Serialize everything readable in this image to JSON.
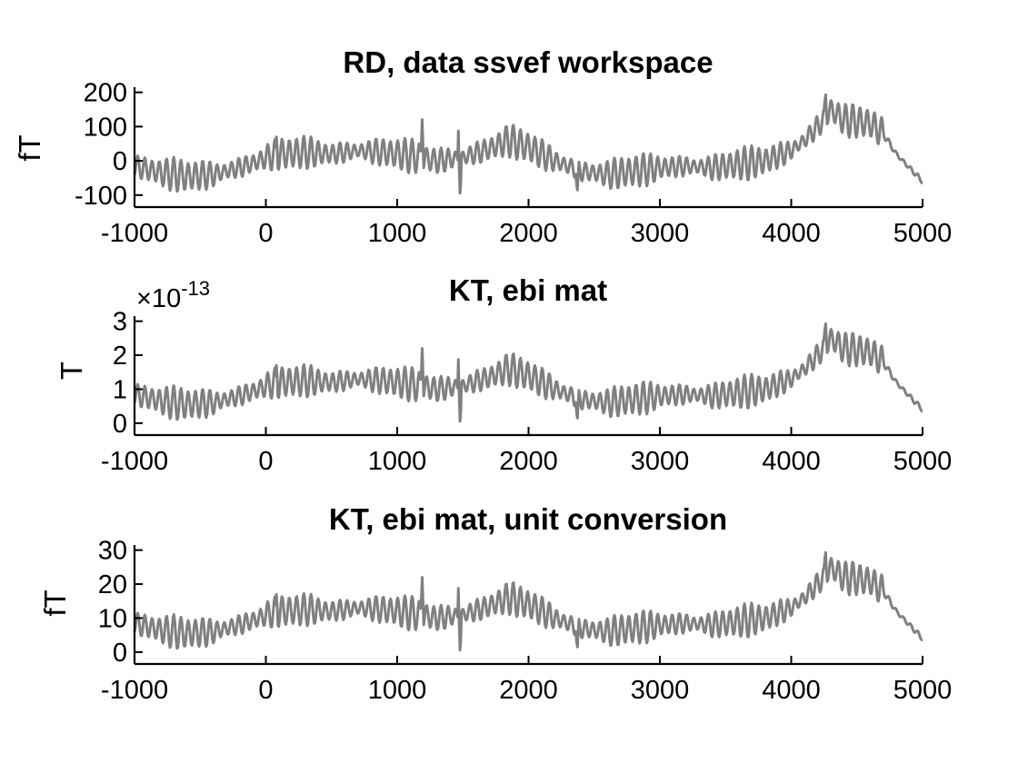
{
  "chart_data": [
    {
      "type": "line",
      "title": "RD, data ssvef workspace",
      "ylabel": "fT",
      "xlim": [
        -1000,
        5000
      ],
      "ylim": [
        -135,
        215
      ],
      "xticks": [
        -1000,
        0,
        1000,
        2000,
        3000,
        4000,
        5000
      ],
      "xtick_labels": [
        "-1000",
        "0",
        "1000",
        "2000",
        "3000",
        "4000",
        "5000"
      ],
      "yticks": [
        -100,
        0,
        100,
        200
      ],
      "ytick_labels": [
        "-100",
        "0",
        "100",
        "200"
      ],
      "exponent_label": null,
      "color": "#808080",
      "grid": false,
      "envelope": {
        "x": [
          -1000,
          -800,
          -600,
          -400,
          -200,
          -50,
          0,
          100,
          300,
          500,
          700,
          900,
          1100,
          1300,
          1500,
          1700,
          1850,
          2000,
          2200,
          2400,
          2600,
          2800,
          3000,
          3200,
          3400,
          3600,
          3800,
          4000,
          4100,
          4250,
          4300,
          4400,
          4600,
          4700,
          4800,
          5000
        ],
        "y": [
          -15,
          -35,
          -45,
          -40,
          -20,
          0,
          10,
          20,
          25,
          20,
          30,
          25,
          15,
          0,
          10,
          35,
          60,
          40,
          0,
          -30,
          -40,
          -30,
          -20,
          -15,
          -20,
          -10,
          0,
          30,
          60,
          120,
          150,
          120,
          110,
          80,
          20,
          -60
        ]
      },
      "oscillation_amplitude": 45,
      "oscillation_period": 55,
      "spikes": [
        {
          "x": 80,
          "y": 70
        },
        {
          "x": 1190,
          "y": 120
        },
        {
          "x": 1470,
          "y": 140
        },
        {
          "x": 1480,
          "y": -120
        },
        {
          "x": 2370,
          "y": -100
        },
        {
          "x": 4260,
          "y": 210
        }
      ]
    },
    {
      "type": "line",
      "title": "KT, ebi mat",
      "ylabel": "T",
      "xlim": [
        -1000,
        5000
      ],
      "ylim": [
        -0.35,
        3.15
      ],
      "xticks": [
        -1000,
        0,
        1000,
        2000,
        3000,
        4000,
        5000
      ],
      "xtick_labels": [
        "-1000",
        "0",
        "1000",
        "2000",
        "3000",
        "4000",
        "5000"
      ],
      "yticks": [
        0,
        1,
        2,
        3
      ],
      "ytick_labels": [
        "0",
        "1",
        "2",
        "3"
      ],
      "exponent_label": {
        "prefix": "×10",
        "exponent": "-13"
      },
      "color": "#808080",
      "grid": false,
      "envelope": {
        "x": [
          -1000,
          -800,
          -600,
          -400,
          -200,
          -50,
          0,
          100,
          300,
          500,
          700,
          900,
          1100,
          1300,
          1500,
          1700,
          1850,
          2000,
          2200,
          2400,
          2600,
          2800,
          3000,
          3200,
          3400,
          3600,
          3800,
          4000,
          4100,
          4250,
          4300,
          4400,
          4600,
          4700,
          4800,
          5000
        ],
        "y": [
          0.85,
          0.65,
          0.55,
          0.6,
          0.8,
          1.0,
          1.1,
          1.2,
          1.25,
          1.2,
          1.3,
          1.25,
          1.15,
          1.0,
          1.1,
          1.35,
          1.6,
          1.4,
          1.0,
          0.7,
          0.6,
          0.7,
          0.8,
          0.85,
          0.8,
          0.9,
          1.0,
          1.3,
          1.6,
          2.2,
          2.5,
          2.2,
          2.1,
          1.8,
          1.2,
          0.4
        ]
      },
      "oscillation_amplitude": 0.45,
      "oscillation_period": 55,
      "spikes": [
        {
          "x": 80,
          "y": 1.7
        },
        {
          "x": 1190,
          "y": 2.2
        },
        {
          "x": 1470,
          "y": 2.4
        },
        {
          "x": 1480,
          "y": -0.2
        },
        {
          "x": 2370,
          "y": 0.0
        },
        {
          "x": 4260,
          "y": 3.1
        }
      ]
    },
    {
      "type": "line",
      "title": "KT, ebi mat, unit conversion",
      "ylabel": "fT",
      "xlim": [
        -1000,
        5000
      ],
      "ylim": [
        -3.5,
        31.5
      ],
      "xticks": [
        -1000,
        0,
        1000,
        2000,
        3000,
        4000,
        5000
      ],
      "xtick_labels": [
        "-1000",
        "0",
        "1000",
        "2000",
        "3000",
        "4000",
        "5000"
      ],
      "yticks": [
        0,
        10,
        20,
        30
      ],
      "ytick_labels": [
        "0",
        "10",
        "20",
        "30"
      ],
      "exponent_label": null,
      "color": "#808080",
      "grid": false,
      "envelope": {
        "x": [
          -1000,
          -800,
          -600,
          -400,
          -200,
          -50,
          0,
          100,
          300,
          500,
          700,
          900,
          1100,
          1300,
          1500,
          1700,
          1850,
          2000,
          2200,
          2400,
          2600,
          2800,
          3000,
          3200,
          3400,
          3600,
          3800,
          4000,
          4100,
          4250,
          4300,
          4400,
          4600,
          4700,
          4800,
          5000
        ],
        "y": [
          8.5,
          6.5,
          5.5,
          6,
          8,
          10,
          11,
          12,
          12.5,
          12,
          13,
          12.5,
          11.5,
          10,
          11,
          13.5,
          16,
          14,
          10,
          7,
          6,
          7,
          8,
          8.5,
          8,
          9,
          10,
          13,
          16,
          22,
          25,
          22,
          21,
          18,
          12,
          4
        ]
      },
      "oscillation_amplitude": 4.5,
      "oscillation_period": 55,
      "spikes": [
        {
          "x": 80,
          "y": 17
        },
        {
          "x": 1190,
          "y": 22
        },
        {
          "x": 1470,
          "y": 24
        },
        {
          "x": 1480,
          "y": -2
        },
        {
          "x": 2370,
          "y": 0
        },
        {
          "x": 4260,
          "y": 31
        }
      ]
    }
  ]
}
